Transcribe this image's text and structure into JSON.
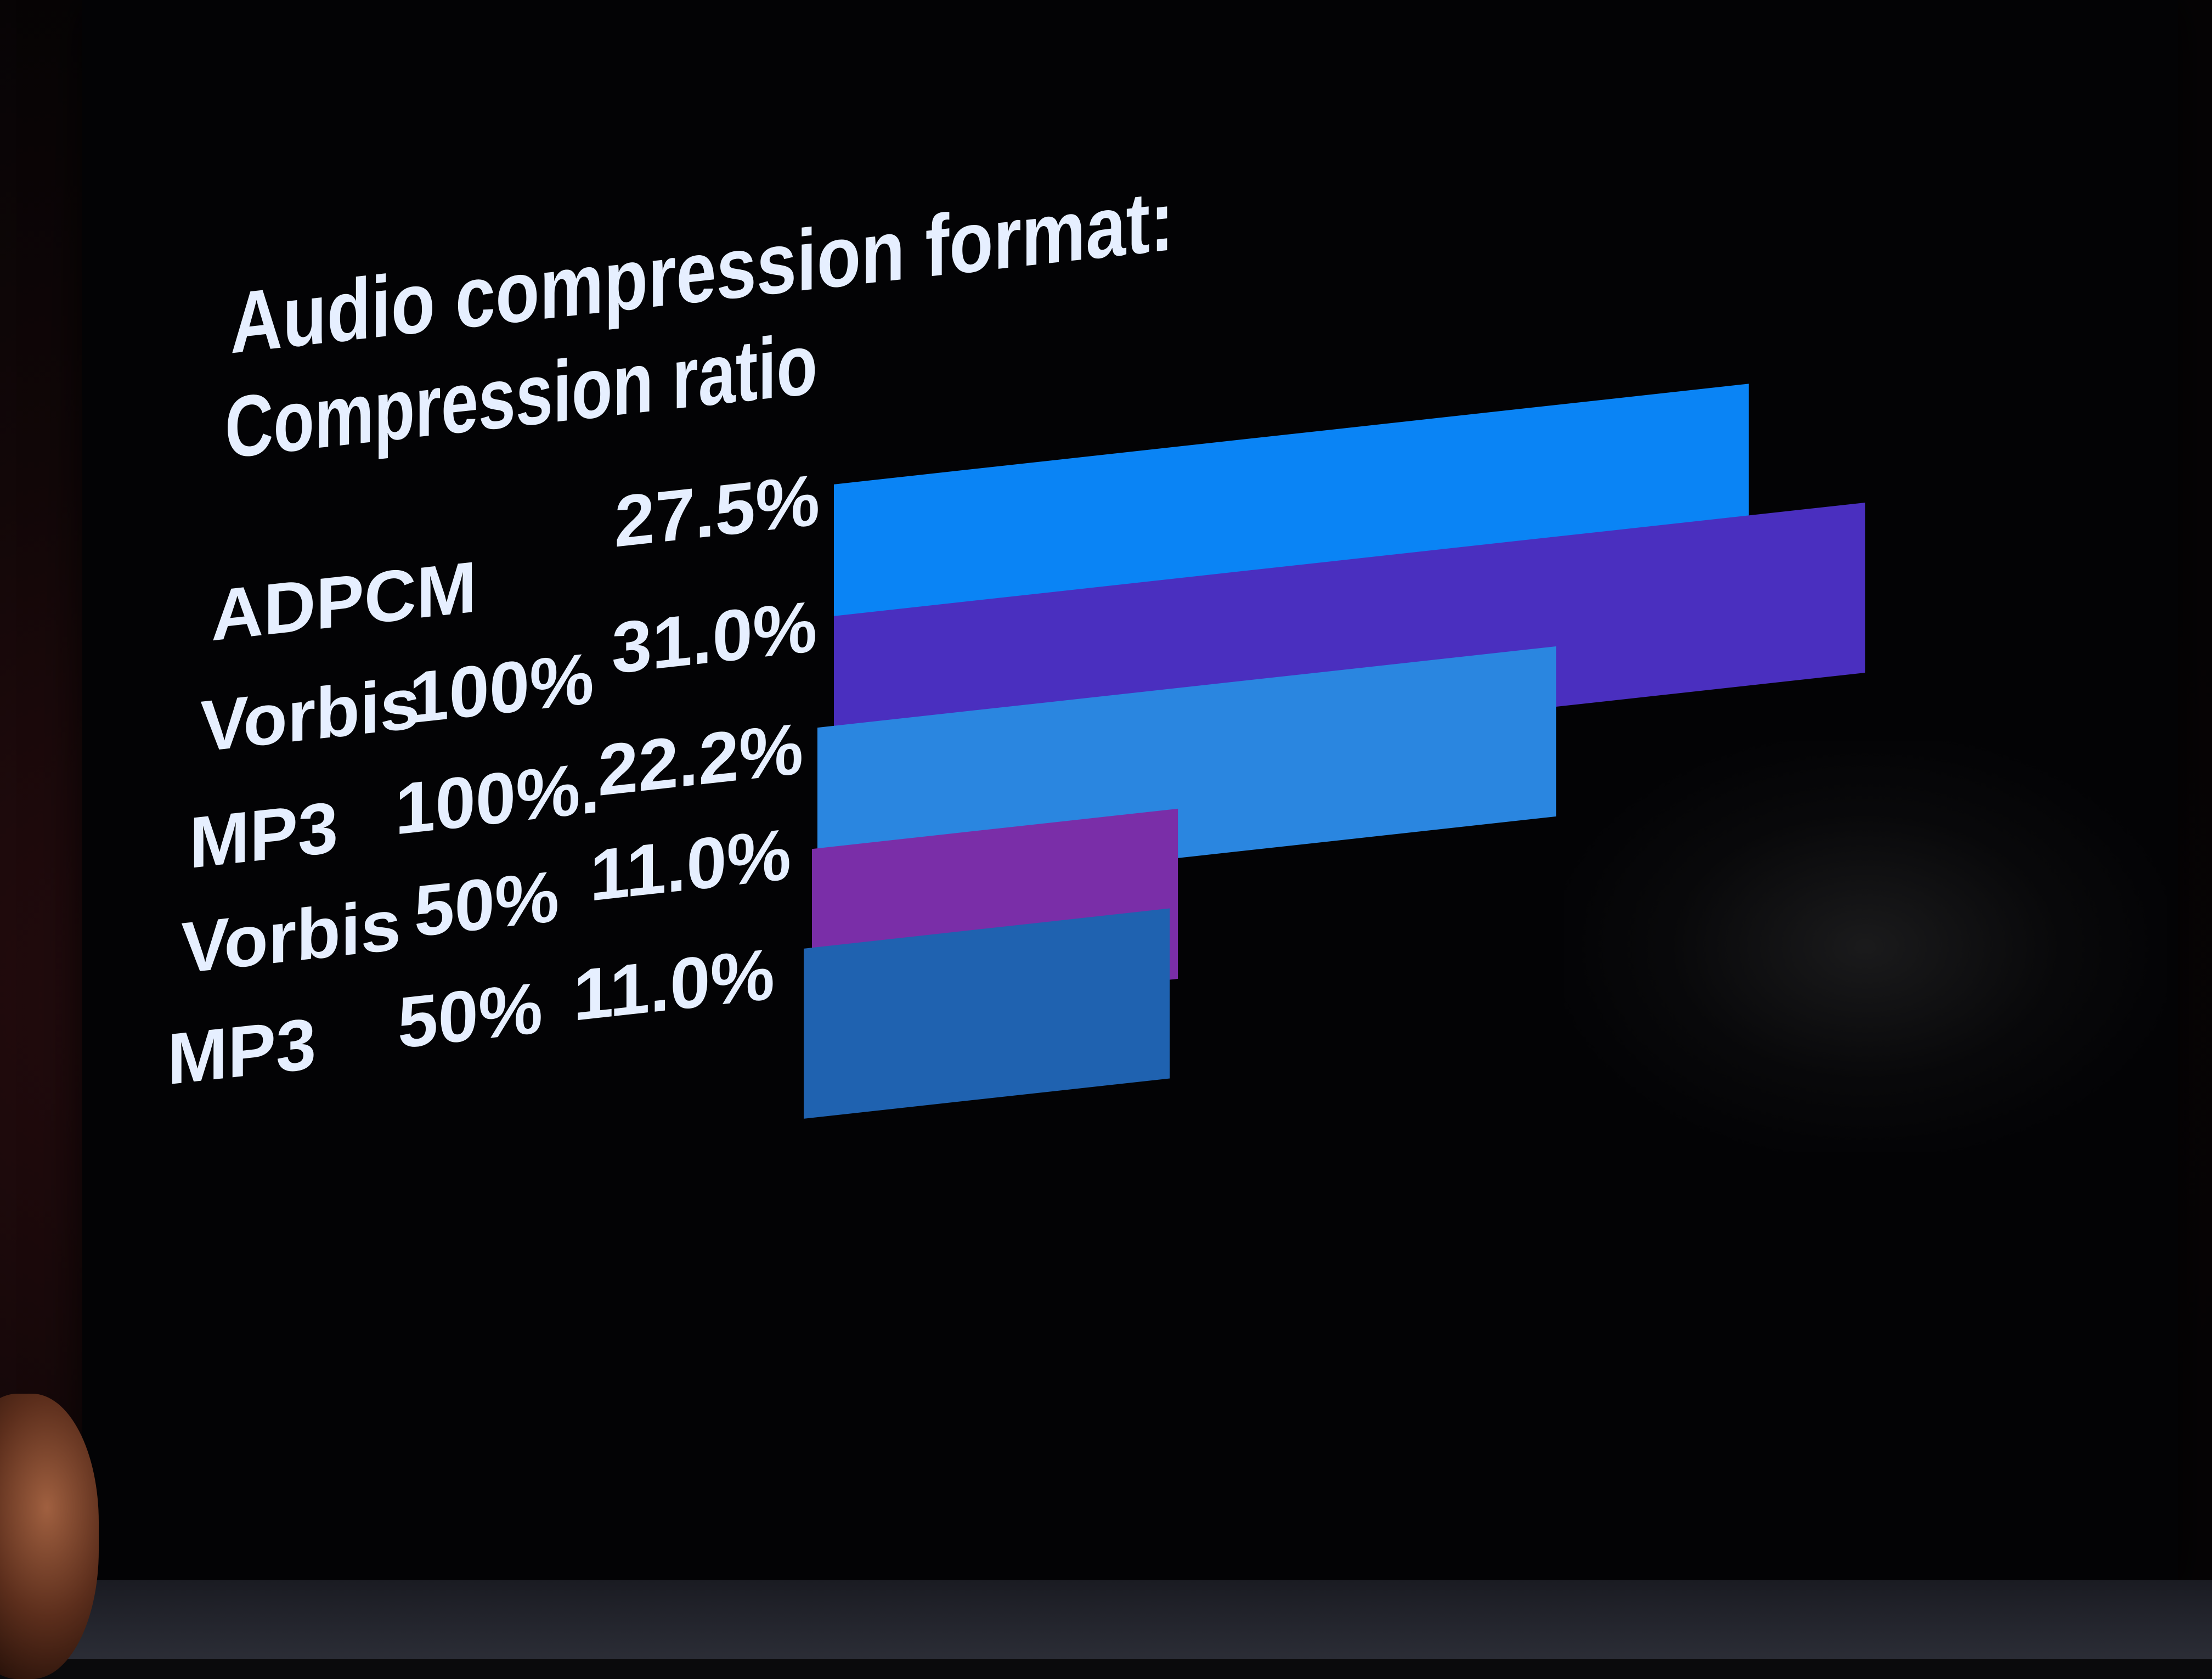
{
  "chart_data": {
    "type": "bar",
    "orientation": "horizontal",
    "title_lines": [
      "Audio compression format:",
      "Compression ratio"
    ],
    "grid": false,
    "categories": [
      "ADPCM",
      "Vorbis",
      "MP3",
      "Vorbis",
      "MP3"
    ],
    "quality": [
      "",
      "100%",
      "100%.",
      "50%",
      "50%"
    ],
    "value_labels": [
      "27.5%",
      "31.0%",
      "22.2%",
      "11.0%",
      "11.0%"
    ],
    "values": [
      27.5,
      31.0,
      22.2,
      11.0,
      11.0
    ],
    "xlim": [
      0,
      31.0
    ],
    "bar_colors": [
      "#0a84f5",
      "#4a2fbf",
      "#2a86e0",
      "#7a2ea8",
      "#1f62b0"
    ]
  }
}
